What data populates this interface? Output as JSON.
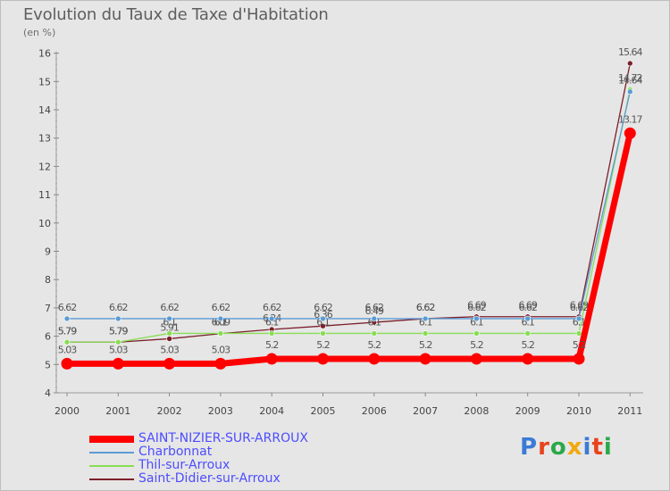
{
  "header": {
    "title": "Evolution du Taux de Taxe d'Habitation",
    "unit": "(en %)"
  },
  "brand": {
    "letters": [
      "P",
      "r",
      "o",
      "x",
      "i",
      "t",
      "i"
    ],
    "colors": [
      "#3a7bd5",
      "#e8431c",
      "#2ba84a",
      "#f2a90f",
      "#3a7bd5",
      "#e8431c",
      "#2ba84a"
    ]
  },
  "chart_data": {
    "type": "line",
    "title": "Evolution du Taux de Taxe d'Habitation",
    "ylabel": "(en %)",
    "xlabel": "",
    "ylim": [
      4,
      16
    ],
    "yticks": [
      4,
      5,
      6,
      7,
      8,
      9,
      10,
      11,
      12,
      13,
      14,
      15,
      16
    ],
    "categories": [
      "2000",
      "2001",
      "2002",
      "2003",
      "2004",
      "2005",
      "2006",
      "2007",
      "2008",
      "2009",
      "2010",
      "2011"
    ],
    "grid": false,
    "legend_position": "bottom-left",
    "series": [
      {
        "name": "Saint-Didier-sur-Arroux",
        "color": "#7b1f2a",
        "values": [
          5.79,
          5.79,
          5.91,
          6.09,
          6.24,
          6.36,
          6.49,
          6.62,
          6.69,
          6.69,
          6.69,
          15.64
        ],
        "labels": [
          "5.79",
          "5.79",
          "5.91",
          "6.09",
          "6.24",
          "6.36",
          "6.49",
          "6.62",
          "6.69",
          "6.69",
          "6.69",
          "15.64"
        ]
      },
      {
        "name": "Thil-sur-Arroux",
        "color": "#88dd55",
        "values": [
          5.79,
          5.79,
          6.1,
          6.1,
          6.1,
          6.1,
          6.1,
          6.1,
          6.1,
          6.1,
          6.1,
          14.72
        ],
        "labels": [
          "5.79",
          "5.79",
          "6.1",
          "6.1",
          "6.1",
          "6.1",
          "6.1",
          "6.1",
          "6.1",
          "6.1",
          "6.1",
          "14.72"
        ]
      },
      {
        "name": "Charbonnat",
        "color": "#5b9bd5",
        "values": [
          6.62,
          6.62,
          6.62,
          6.62,
          6.62,
          6.62,
          6.62,
          6.62,
          6.62,
          6.62,
          6.62,
          14.64
        ],
        "labels": [
          "6.62",
          "6.62",
          "6.62",
          "6.62",
          "6.62",
          "6.62",
          "6.62",
          "6.62",
          "6.62",
          "6.62",
          "6.62",
          "14.64"
        ]
      },
      {
        "name": "SAINT-NIZIER-SUR-ARROUX",
        "color": "#ff0000",
        "values": [
          5.03,
          5.03,
          5.03,
          5.03,
          5.2,
          5.2,
          5.2,
          5.2,
          5.2,
          5.2,
          5.2,
          13.17
        ],
        "labels": [
          "5.03",
          "5.03",
          "5.03",
          "5.03",
          "5.2",
          "5.2",
          "5.2",
          "5.2",
          "5.2",
          "5.2",
          "5.2",
          "13.17"
        ]
      }
    ],
    "legend": [
      {
        "name": "SAINT-NIZIER-SUR-ARROUX",
        "color": "#ff0000",
        "thick": true
      },
      {
        "name": "Charbonnat",
        "color": "#5b9bd5",
        "thick": false
      },
      {
        "name": "Thil-sur-Arroux",
        "color": "#88dd55",
        "thick": false
      },
      {
        "name": "Saint-Didier-sur-Arroux",
        "color": "#7b1f2a",
        "thick": false
      }
    ]
  }
}
